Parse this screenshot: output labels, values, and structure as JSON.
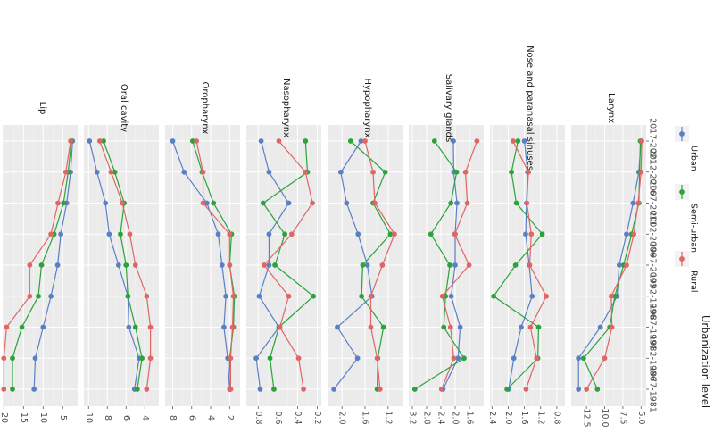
{
  "chart_data": {
    "type": "line",
    "orientation": "rotated-90-clockwise",
    "grid": true,
    "legend_position": "right",
    "legend_title": "Urbanization level",
    "categories": [
      "1977-1981",
      "1982-1986",
      "1987-1991",
      "1992-1996",
      "1997-2001",
      "2002-2006",
      "2007-2011",
      "2012-2016",
      "2017-2021"
    ],
    "colors": {
      "Urban": "#5b7fc5",
      "Semi-urban": "#2aa33b",
      "Rural": "#e06666"
    },
    "panels": [
      {
        "title": "Lip",
        "ticks": [
          20,
          15,
          10,
          5
        ],
        "ylim": [
          20.3,
          1.2
        ],
        "series": [
          {
            "name": "Urban",
            "values": [
              12.3,
              12.0,
              10.0,
              8.0,
              6.3,
              5.5,
              4.0,
              3.0,
              2.5
            ]
          },
          {
            "name": "Semi-urban",
            "values": [
              17.8,
              17.8,
              15.4,
              11.2,
              10.4,
              7.2,
              4.8,
              3.6,
              2.8
            ]
          },
          {
            "name": "Rural",
            "values": [
              20.0,
              20.0,
              19.3,
              13.4,
              13.4,
              8.0,
              6.2,
              4.2,
              3.0
            ]
          }
        ]
      },
      {
        "title": "Oral cavity",
        "ticks": [
          10,
          8,
          6,
          4
        ],
        "ylim": [
          10.5,
          2.5
        ],
        "series": [
          {
            "name": "Urban",
            "values": [
              5.1,
              4.6,
              5.7,
              5.8,
              6.8,
              7.8,
              8.2,
              9.1,
              9.9
            ]
          },
          {
            "name": "Semi-urban",
            "values": [
              4.8,
              4.3,
              5.0,
              5.8,
              6.0,
              6.6,
              6.2,
              7.2,
              8.4
            ]
          },
          {
            "name": "Rural",
            "values": [
              3.8,
              3.4,
              3.4,
              3.8,
              5.0,
              5.6,
              6.4,
              7.6,
              8.8
            ]
          }
        ]
      },
      {
        "title": "Oropharynx",
        "ticks": [
          8,
          6,
          4,
          2
        ],
        "ylim": [
          8.8,
          0.9
        ],
        "series": [
          {
            "name": "Urban",
            "values": [
              2.0,
              2.2,
              2.6,
              2.4,
              2.8,
              3.2,
              4.4,
              6.8,
              8.0
            ]
          },
          {
            "name": "Semi-urban",
            "values": [
              1.9,
              2.0,
              1.6,
              1.5,
              2.0,
              1.8,
              3.7,
              4.9,
              5.9
            ]
          },
          {
            "name": "Rural",
            "values": [
              1.9,
              1.9,
              1.7,
              1.6,
              2.0,
              2.0,
              4.8,
              4.8,
              5.5
            ]
          }
        ]
      },
      {
        "title": "Nasopharynx",
        "ticks": [
          0.8,
          0.6,
          0.4,
          0.2
        ],
        "ylim": [
          0.92,
          0.16
        ],
        "series": [
          {
            "name": "Urban",
            "values": [
              0.78,
              0.82,
              0.59,
              0.79,
              0.69,
              0.69,
              0.49,
              0.69,
              0.77
            ]
          },
          {
            "name": "Semi-urban",
            "values": [
              0.64,
              0.68,
              0.59,
              0.24,
              0.63,
              0.53,
              0.75,
              0.3,
              0.32
            ]
          },
          {
            "name": "Rural",
            "values": [
              0.34,
              0.39,
              0.58,
              0.49,
              0.74,
              0.46,
              0.25,
              0.32,
              0.59
            ]
          }
        ]
      },
      {
        "title": "Hypopharynx",
        "ticks": [
          2.0,
          1.6,
          1.2
        ],
        "ylim": [
          2.25,
          0.95
        ],
        "series": [
          {
            "name": "Urban",
            "values": [
              2.14,
              1.73,
              2.08,
              1.48,
              1.56,
              1.72,
              1.92,
              2.02,
              1.67
            ]
          },
          {
            "name": "Semi-urban",
            "values": [
              1.39,
              1.38,
              1.28,
              1.66,
              1.64,
              1.16,
              1.46,
              1.25,
              1.85
            ]
          },
          {
            "name": "Rural",
            "values": [
              1.34,
              1.39,
              1.5,
              1.5,
              1.3,
              1.09,
              1.43,
              1.46,
              1.6
            ]
          }
        ]
      },
      {
        "title": "Salivary glands",
        "ticks": [
          3.2,
          2.8,
          2.4,
          2.0,
          1.6
        ],
        "ylim": [
          3.3,
          1.2
        ],
        "series": [
          {
            "name": "Urban",
            "values": [
              2.34,
              1.92,
              1.86,
              2.11,
              2.0,
              2.0,
              1.95,
              2.04,
              2.05
            ]
          },
          {
            "name": "Semi-urban",
            "values": [
              3.13,
              1.75,
              2.32,
              2.27,
              2.15,
              2.68,
              2.12,
              1.96,
              2.58
            ]
          },
          {
            "name": "Rural",
            "values": [
              2.38,
              2.04,
              2.13,
              2.36,
              1.61,
              2.01,
              1.66,
              1.71,
              1.39
            ]
          }
        ]
      },
      {
        "title": "Nose and paranasal sinuses",
        "ticks": [
          2.4,
          2.0,
          1.6,
          1.2,
          0.8
        ],
        "ylim": [
          2.45,
          0.6
        ],
        "series": [
          {
            "name": "Urban",
            "values": [
              1.99,
              1.86,
              1.68,
              1.41,
              1.48,
              1.57,
              1.55,
              1.52,
              1.6
            ]
          },
          {
            "name": "Semi-urban",
            "values": [
              2.03,
              1.27,
              1.25,
              2.36,
              1.82,
              1.16,
              1.8,
              1.92,
              1.76
            ]
          },
          {
            "name": "Rural",
            "values": [
              1.56,
              1.3,
              1.45,
              1.06,
              1.47,
              1.43,
              1.54,
              1.5,
              1.88
            ]
          }
        ]
      },
      {
        "title": "Larynx",
        "ticks": [
          12.5,
          10.0,
          7.5,
          5.0
        ],
        "ylim": [
          14.6,
          4.3
        ],
        "series": [
          {
            "name": "Urban",
            "values": [
              13.6,
              13.6,
              10.6,
              8.3,
              8.0,
              7.0,
              6.1,
              5.3,
              5.0
            ]
          },
          {
            "name": "Semi-urban",
            "values": [
              11.0,
              12.9,
              9.3,
              8.6,
              7.4,
              6.3,
              5.3,
              5.2,
              5.1
            ]
          },
          {
            "name": "Rural",
            "values": [
              12.5,
              10.0,
              9.0,
              9.1,
              7.0,
              6.0,
              5.4,
              5.0,
              4.9
            ]
          }
        ]
      }
    ]
  }
}
